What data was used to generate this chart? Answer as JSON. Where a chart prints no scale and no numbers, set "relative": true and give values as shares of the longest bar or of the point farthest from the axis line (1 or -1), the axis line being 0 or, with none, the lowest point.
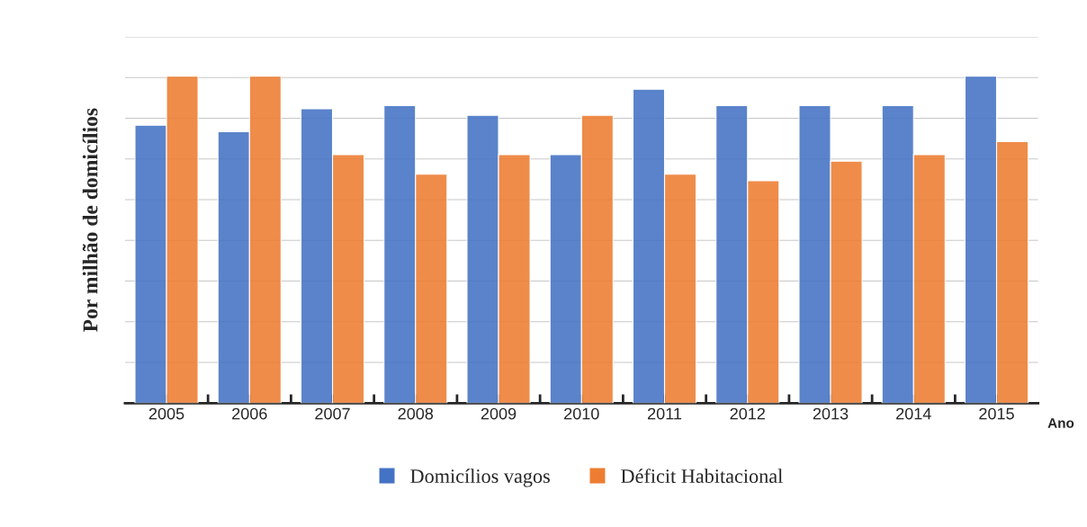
{
  "chart_data": {
    "type": "bar",
    "relative": true,
    "xlabel": "Ano",
    "ylabel": "Por milhão de domicílios",
    "categories": [
      "2005",
      "2006",
      "2007",
      "2008",
      "2009",
      "2010",
      "2011",
      "2012",
      "2013",
      "2014",
      "2015"
    ],
    "series": [
      {
        "name": "Domicílios vagos",
        "color": "#4472c4",
        "values": [
          0.85,
          0.83,
          0.9,
          0.91,
          0.88,
          0.76,
          0.96,
          0.91,
          0.91,
          0.91,
          1.0
        ]
      },
      {
        "name": "Déficit Habitacional",
        "color": "#ed7d31",
        "values": [
          1.0,
          1.0,
          0.76,
          0.7,
          0.76,
          0.88,
          0.7,
          0.68,
          0.74,
          0.76,
          0.8
        ]
      }
    ],
    "grid": "y",
    "legend": "bottom"
  }
}
